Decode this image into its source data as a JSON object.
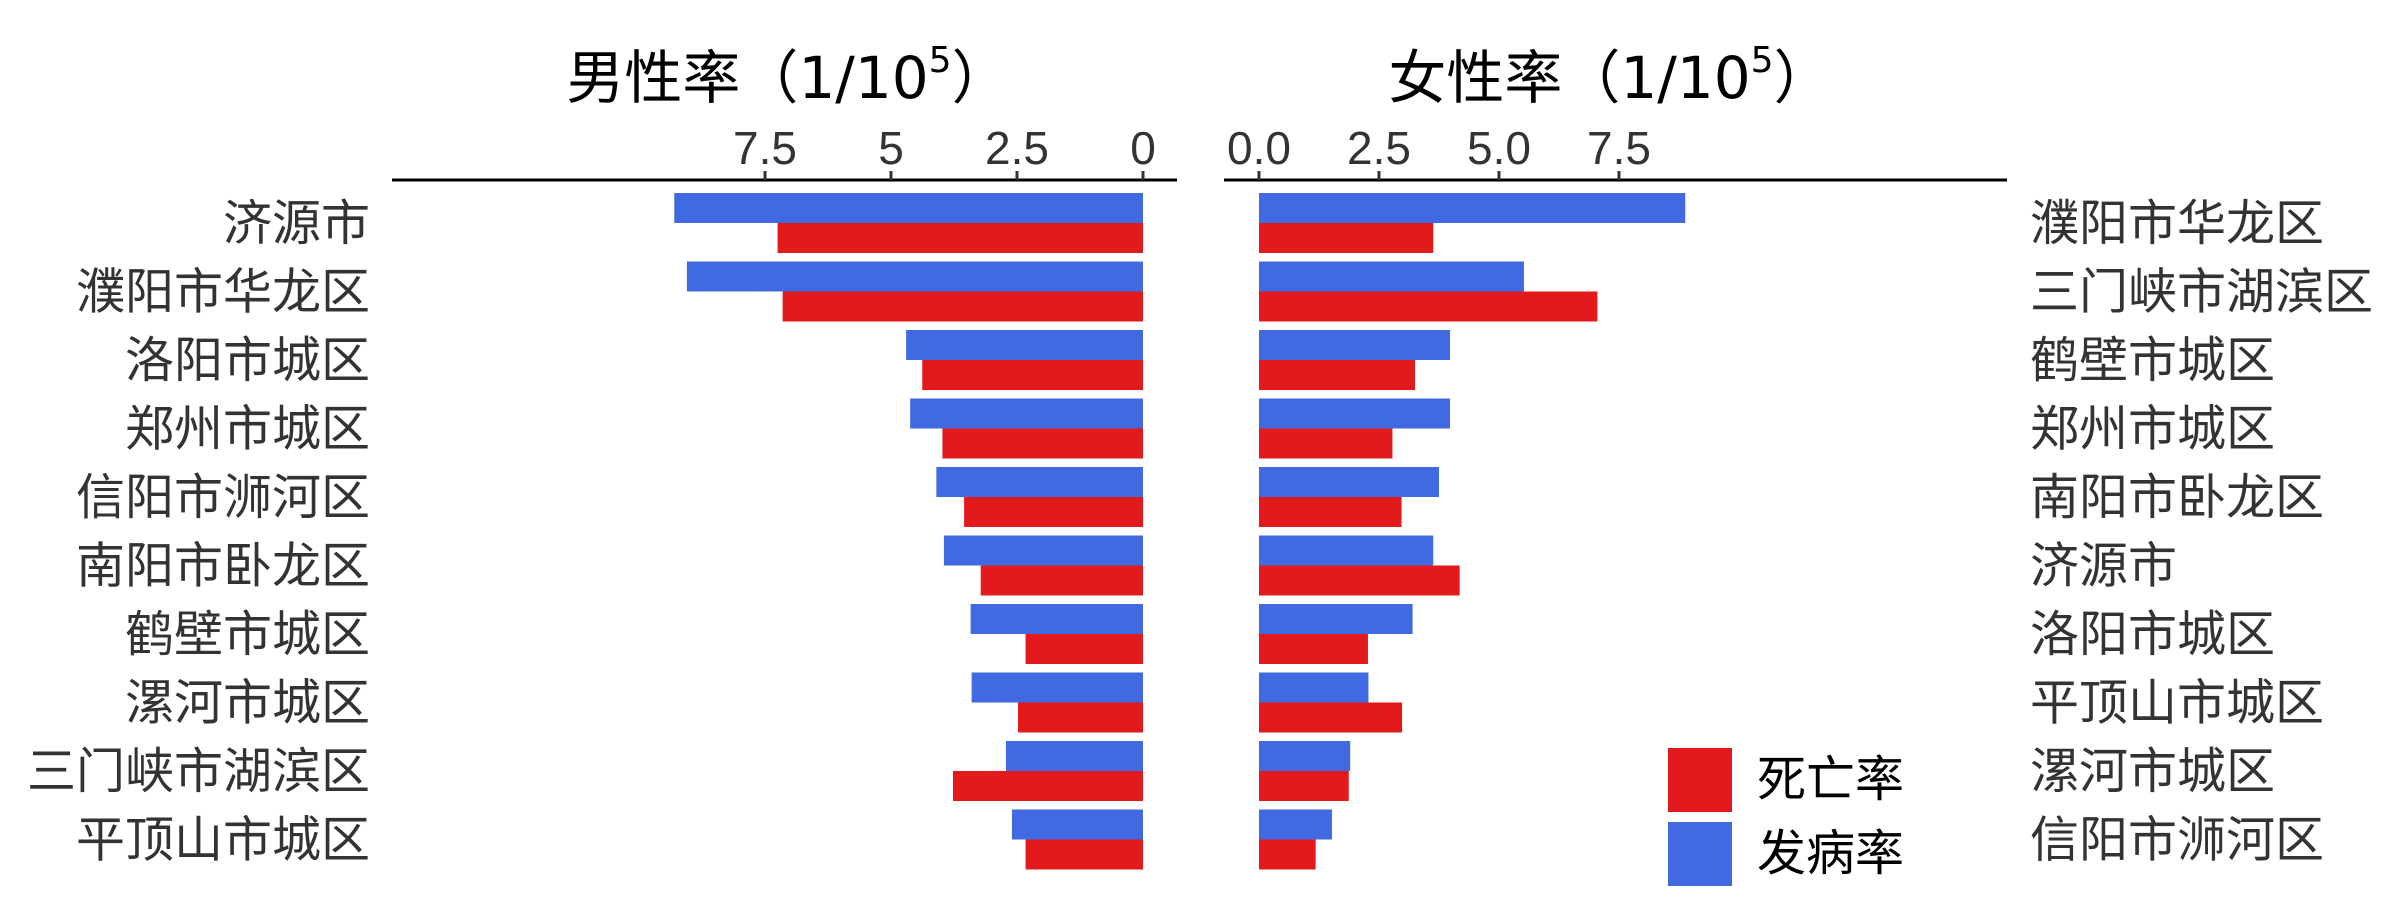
{
  "colors": {
    "mortality": "#E31A1C",
    "incidence": "#4169E1"
  },
  "legend": {
    "mortality_label": "死亡率",
    "incidence_label": "发病率"
  },
  "chart_data": [
    {
      "type": "bar",
      "panel": "male",
      "title": "男性率（1/10",
      "title_exponent": "5",
      "title_close": "）",
      "xlim": [
        0,
        9.3
      ],
      "xticks": [
        7.5,
        5,
        2.5,
        0
      ],
      "xtick_labels": [
        "7.5",
        "5",
        "2.5",
        "0"
      ],
      "categories": [
        "济源市",
        "濮阳市华龙区",
        "洛阳市城区",
        "郑州市城区",
        "信阳市浉河区",
        "南阳市卧龙区",
        "鹤壁市城区",
        "漯河市城区",
        "三门峡市湖滨区",
        "平顶山市城区"
      ],
      "series": [
        {
          "name": "发病率",
          "key": "incidence",
          "values": [
            9.3,
            9.05,
            4.7,
            4.62,
            4.1,
            3.95,
            3.42,
            3.4,
            2.72,
            2.6
          ]
        },
        {
          "name": "死亡率",
          "key": "mortality",
          "values": [
            7.25,
            7.15,
            4.38,
            3.98,
            3.55,
            3.22,
            2.33,
            2.48,
            3.77,
            2.33
          ]
        }
      ]
    },
    {
      "type": "bar",
      "panel": "female",
      "title": "女性率（1/10",
      "title_exponent": "5",
      "title_close": "）",
      "xlim": [
        0,
        8.9
      ],
      "xticks": [
        0,
        2.5,
        5,
        7.5
      ],
      "xtick_labels": [
        "0.0",
        "2.5",
        "5.0",
        "7.5"
      ],
      "categories": [
        "濮阳市华龙区",
        "三门峡市湖滨区",
        "鹤壁市城区",
        "郑州市城区",
        "南阳市卧龙区",
        "济源市",
        "洛阳市城区",
        "平顶山市城区",
        "漯河市城区",
        "信阳市浉河区"
      ],
      "series": [
        {
          "name": "发病率",
          "key": "incidence",
          "values": [
            8.88,
            5.52,
            3.98,
            3.98,
            3.75,
            3.63,
            3.2,
            2.28,
            1.9,
            1.52
          ]
        },
        {
          "name": "死亡率",
          "key": "mortality",
          "values": [
            3.63,
            7.05,
            3.25,
            2.78,
            2.97,
            4.18,
            2.27,
            2.98,
            1.87,
            1.18
          ]
        }
      ]
    }
  ]
}
